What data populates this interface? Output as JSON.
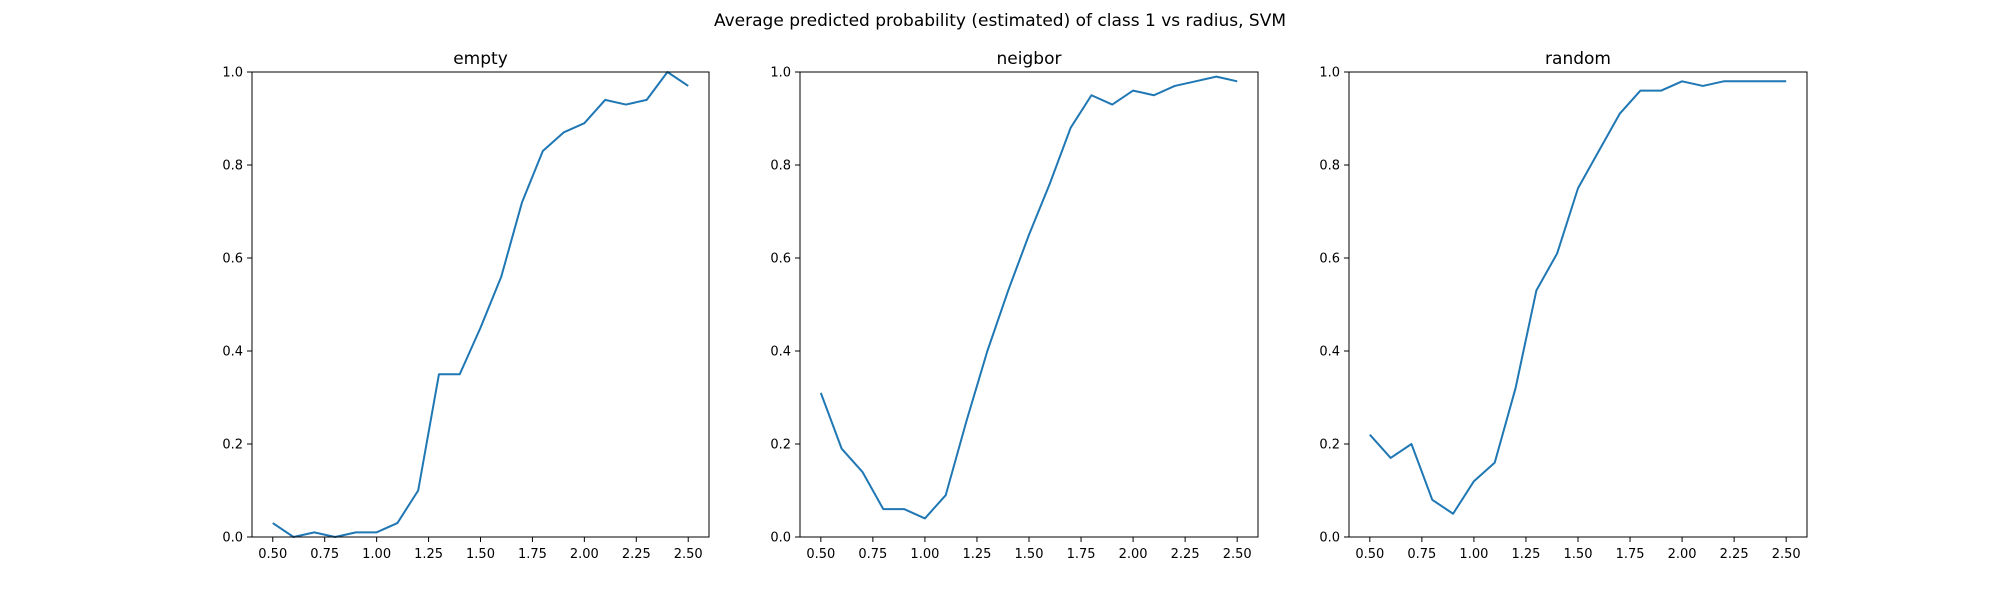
{
  "figure": {
    "title": "Average predicted probability (estimated) of class 1 vs radius, SVM"
  },
  "colors": {
    "line": "#1f77b4",
    "axes": "#000000",
    "background": "#ffffff"
  },
  "chart_data": [
    {
      "type": "line",
      "title": "empty",
      "xlabel": "",
      "ylabel": "",
      "xlim": [
        0.4,
        2.6
      ],
      "ylim": [
        0.0,
        1.0
      ],
      "x_ticks": [
        "0.50",
        "0.75",
        "1.00",
        "1.25",
        "1.50",
        "1.75",
        "2.00",
        "2.25",
        "2.50"
      ],
      "y_ticks": [
        "0.0",
        "0.2",
        "0.4",
        "0.6",
        "0.8",
        "1.0"
      ],
      "grid": false,
      "x": [
        0.5,
        0.6,
        0.7,
        0.8,
        0.9,
        1.0,
        1.1,
        1.2,
        1.3,
        1.4,
        1.5,
        1.6,
        1.7,
        1.8,
        1.9,
        2.0,
        2.1,
        2.2,
        2.3,
        2.4,
        2.5
      ],
      "series": [
        {
          "values": [
            0.03,
            0.0,
            0.01,
            0.0,
            0.01,
            0.01,
            0.03,
            0.1,
            0.35,
            0.35,
            0.45,
            0.56,
            0.72,
            0.83,
            0.87,
            0.89,
            0.94,
            0.93,
            0.94,
            1.0,
            0.97
          ]
        }
      ]
    },
    {
      "type": "line",
      "title": "neigbor",
      "xlabel": "",
      "ylabel": "",
      "xlim": [
        0.4,
        2.6
      ],
      "ylim": [
        0.0,
        1.0
      ],
      "x_ticks": [
        "0.50",
        "0.75",
        "1.00",
        "1.25",
        "1.50",
        "1.75",
        "2.00",
        "2.25",
        "2.50"
      ],
      "y_ticks": [
        "0.0",
        "0.2",
        "0.4",
        "0.6",
        "0.8",
        "1.0"
      ],
      "grid": false,
      "x": [
        0.5,
        0.6,
        0.7,
        0.8,
        0.9,
        1.0,
        1.1,
        1.2,
        1.3,
        1.4,
        1.5,
        1.6,
        1.7,
        1.8,
        1.9,
        2.0,
        2.1,
        2.2,
        2.3,
        2.4,
        2.5
      ],
      "series": [
        {
          "values": [
            0.31,
            0.19,
            0.14,
            0.06,
            0.06,
            0.04,
            0.09,
            0.25,
            0.4,
            0.53,
            0.65,
            0.76,
            0.88,
            0.95,
            0.93,
            0.96,
            0.95,
            0.97,
            0.98,
            0.99,
            0.98
          ]
        }
      ]
    },
    {
      "type": "line",
      "title": "random",
      "xlabel": "",
      "ylabel": "",
      "xlim": [
        0.4,
        2.6
      ],
      "ylim": [
        0.0,
        1.0
      ],
      "x_ticks": [
        "0.50",
        "0.75",
        "1.00",
        "1.25",
        "1.50",
        "1.75",
        "2.00",
        "2.25",
        "2.50"
      ],
      "y_ticks": [
        "0.0",
        "0.2",
        "0.4",
        "0.6",
        "0.8",
        "1.0"
      ],
      "grid": false,
      "x": [
        0.5,
        0.6,
        0.7,
        0.8,
        0.9,
        1.0,
        1.1,
        1.2,
        1.3,
        1.4,
        1.5,
        1.6,
        1.7,
        1.8,
        1.9,
        2.0,
        2.1,
        2.2,
        2.3,
        2.4,
        2.5
      ],
      "series": [
        {
          "values": [
            0.22,
            0.17,
            0.2,
            0.08,
            0.05,
            0.12,
            0.16,
            0.32,
            0.53,
            0.61,
            0.75,
            0.83,
            0.91,
            0.96,
            0.96,
            0.98,
            0.97,
            0.98,
            0.98,
            0.98,
            0.98
          ]
        }
      ]
    }
  ]
}
